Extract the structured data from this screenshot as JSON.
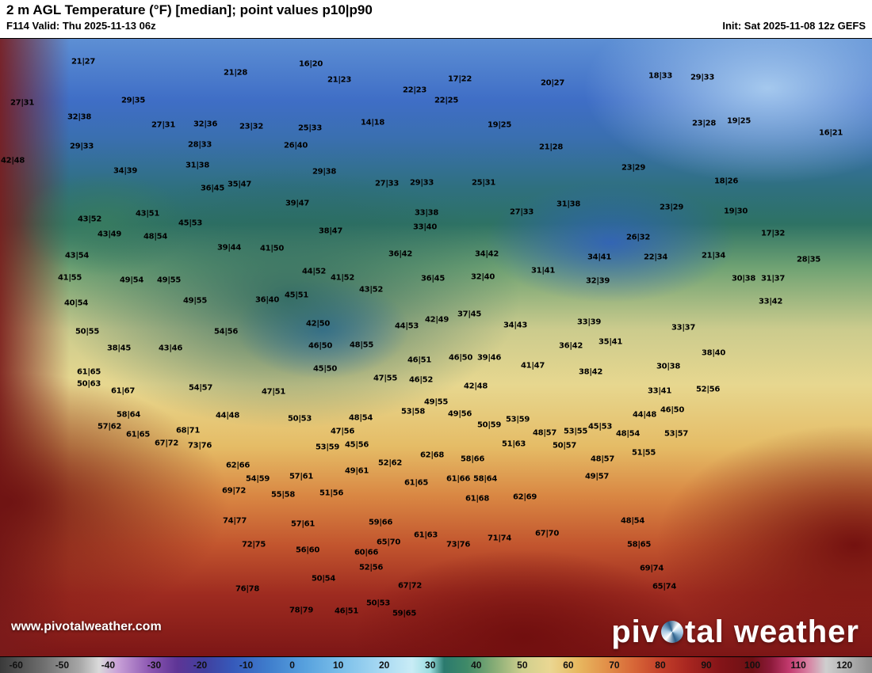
{
  "header": {
    "title": "2 m AGL Temperature (°F) [median]; point values p10|p90",
    "valid": "F114 Valid: Thu 2025-11-13 06z",
    "init": "Init: Sat 2025-11-08 12z GEFS"
  },
  "watermark": {
    "site": "www.pivotalweather.com",
    "brand_left": "piv",
    "brand_right": "tal weather"
  },
  "colorbar": {
    "domain": [
      -63.5,
      126
    ],
    "ticks": [
      -60,
      -50,
      -40,
      -30,
      -20,
      -10,
      0,
      10,
      20,
      30,
      40,
      50,
      60,
      70,
      80,
      90,
      100,
      110,
      120
    ],
    "stops": [
      [
        -63.5,
        "#3a3a3a"
      ],
      [
        -54,
        "#6f6f6f"
      ],
      [
        -46,
        "#a9a9a9"
      ],
      [
        -42,
        "#dadada"
      ],
      [
        -38,
        "#c9a2d8"
      ],
      [
        -31,
        "#8d58b2"
      ],
      [
        -25,
        "#5e3596"
      ],
      [
        -19,
        "#41409f"
      ],
      [
        -13,
        "#3659ba"
      ],
      [
        -5,
        "#3f7ecd"
      ],
      [
        3,
        "#58a2de"
      ],
      [
        11,
        "#7cc0ea"
      ],
      [
        19,
        "#a6d8f2"
      ],
      [
        26,
        "#c9ecf6"
      ],
      [
        30,
        "#9adee0"
      ],
      [
        33,
        "#2b7a6e"
      ],
      [
        38,
        "#3f8a68"
      ],
      [
        44,
        "#87ad76"
      ],
      [
        50,
        "#cfcf8e"
      ],
      [
        56,
        "#ead792"
      ],
      [
        62,
        "#e8b960"
      ],
      [
        68,
        "#e2924a"
      ],
      [
        74,
        "#d86838"
      ],
      [
        80,
        "#c4402a"
      ],
      [
        86,
        "#a82620"
      ],
      [
        93,
        "#841418"
      ],
      [
        100,
        "#6d1014"
      ],
      [
        104,
        "#8c1a3a"
      ],
      [
        108,
        "#c23a6e"
      ],
      [
        112,
        "#d87ea0"
      ],
      [
        116,
        "#cfcfcf"
      ],
      [
        126,
        "#8f8f8f"
      ]
    ]
  },
  "map": {
    "points": [
      [
        105,
        78,
        "21|27"
      ],
      [
        392,
        81,
        "16|20"
      ],
      [
        297,
        92,
        "21|28"
      ],
      [
        833,
        96,
        "18|33"
      ],
      [
        886,
        98,
        "29|33"
      ],
      [
        428,
        101,
        "21|23"
      ],
      [
        580,
        100,
        "17|22"
      ],
      [
        697,
        105,
        "20|27"
      ],
      [
        523,
        114,
        "22|23"
      ],
      [
        563,
        127,
        "22|25"
      ],
      [
        168,
        127,
        "29|35"
      ],
      [
        28,
        130,
        "27|31"
      ],
      [
        100,
        148,
        "32|38"
      ],
      [
        932,
        153,
        "19|25"
      ],
      [
        470,
        155,
        "14|18"
      ],
      [
        206,
        158,
        "27|31"
      ],
      [
        259,
        157,
        "32|36"
      ],
      [
        888,
        156,
        "23|28"
      ],
      [
        317,
        160,
        "23|32"
      ],
      [
        391,
        162,
        "25|33"
      ],
      [
        630,
        158,
        "19|25"
      ],
      [
        1048,
        168,
        "16|21"
      ],
      [
        103,
        185,
        "29|33"
      ],
      [
        252,
        183,
        "28|33"
      ],
      [
        373,
        184,
        "26|40"
      ],
      [
        695,
        186,
        "21|28"
      ],
      [
        16,
        203,
        "42|48"
      ],
      [
        249,
        209,
        "31|38"
      ],
      [
        799,
        212,
        "23|29"
      ],
      [
        158,
        216,
        "34|39"
      ],
      [
        409,
        217,
        "29|38"
      ],
      [
        916,
        229,
        "18|26"
      ],
      [
        302,
        233,
        "35|47"
      ],
      [
        488,
        232,
        "27|33"
      ],
      [
        532,
        231,
        "29|33"
      ],
      [
        610,
        231,
        "25|31"
      ],
      [
        268,
        238,
        "36|45"
      ],
      [
        375,
        257,
        "39|47"
      ],
      [
        717,
        258,
        "31|38"
      ],
      [
        847,
        262,
        "23|29"
      ],
      [
        928,
        267,
        "19|30"
      ],
      [
        658,
        268,
        "27|33"
      ],
      [
        538,
        269,
        "33|38"
      ],
      [
        186,
        270,
        "43|51"
      ],
      [
        113,
        277,
        "43|52"
      ],
      [
        240,
        282,
        "45|53"
      ],
      [
        536,
        287,
        "33|40"
      ],
      [
        138,
        296,
        "43|49"
      ],
      [
        196,
        299,
        "48|54"
      ],
      [
        805,
        300,
        "26|32"
      ],
      [
        975,
        295,
        "17|32"
      ],
      [
        289,
        313,
        "39|44"
      ],
      [
        343,
        314,
        "41|50"
      ],
      [
        417,
        292,
        "38|47"
      ],
      [
        97,
        323,
        "43|54"
      ],
      [
        505,
        321,
        "36|42"
      ],
      [
        614,
        321,
        "34|42"
      ],
      [
        827,
        325,
        "22|34"
      ],
      [
        900,
        323,
        "21|34"
      ],
      [
        1020,
        328,
        "28|35"
      ],
      [
        756,
        325,
        "34|41"
      ],
      [
        685,
        342,
        "31|41"
      ],
      [
        396,
        343,
        "44|52"
      ],
      [
        88,
        351,
        "41|55"
      ],
      [
        166,
        354,
        "49|54"
      ],
      [
        213,
        354,
        "49|55"
      ],
      [
        432,
        351,
        "41|52"
      ],
      [
        546,
        352,
        "36|45"
      ],
      [
        609,
        350,
        "32|40"
      ],
      [
        754,
        355,
        "32|39"
      ],
      [
        938,
        352,
        "30|38"
      ],
      [
        975,
        352,
        "31|37"
      ],
      [
        468,
        366,
        "43|52"
      ],
      [
        374,
        373,
        "45|51"
      ],
      [
        337,
        379,
        "36|40"
      ],
      [
        246,
        380,
        "49|55"
      ],
      [
        972,
        381,
        "33|42"
      ],
      [
        96,
        383,
        "40|54"
      ],
      [
        592,
        397,
        "37|45"
      ],
      [
        401,
        409,
        "42|50"
      ],
      [
        743,
        407,
        "33|39"
      ],
      [
        650,
        411,
        "34|43"
      ],
      [
        862,
        414,
        "33|37"
      ],
      [
        110,
        419,
        "50|55"
      ],
      [
        285,
        419,
        "54|56"
      ],
      [
        513,
        412,
        "44|53"
      ],
      [
        551,
        404,
        "42|49"
      ],
      [
        770,
        432,
        "35|41"
      ],
      [
        720,
        437,
        "36|42"
      ],
      [
        404,
        437,
        "46|50"
      ],
      [
        456,
        436,
        "48|55"
      ],
      [
        150,
        440,
        "38|45"
      ],
      [
        215,
        440,
        "43|46"
      ],
      [
        900,
        446,
        "38|40"
      ],
      [
        617,
        452,
        "39|46"
      ],
      [
        581,
        452,
        "46|50"
      ],
      [
        529,
        455,
        "46|51"
      ],
      [
        672,
        462,
        "41|47"
      ],
      [
        843,
        463,
        "30|38"
      ],
      [
        410,
        466,
        "45|50"
      ],
      [
        112,
        470,
        "61|65"
      ],
      [
        745,
        470,
        "38|42"
      ],
      [
        486,
        478,
        "47|55"
      ],
      [
        531,
        480,
        "46|52"
      ],
      [
        112,
        485,
        "50|63"
      ],
      [
        600,
        488,
        "42|48"
      ],
      [
        253,
        490,
        "54|57"
      ],
      [
        893,
        492,
        "52|56"
      ],
      [
        832,
        494,
        "33|41"
      ],
      [
        155,
        494,
        "61|67"
      ],
      [
        345,
        495,
        "47|51"
      ],
      [
        550,
        508,
        "49|55"
      ],
      [
        521,
        520,
        "53|58"
      ],
      [
        580,
        523,
        "49|56"
      ],
      [
        848,
        518,
        "46|50"
      ],
      [
        813,
        524,
        "44|48"
      ],
      [
        287,
        525,
        "44|48"
      ],
      [
        455,
        528,
        "48|54"
      ],
      [
        378,
        529,
        "50|53"
      ],
      [
        653,
        530,
        "53|59"
      ],
      [
        617,
        537,
        "50|59"
      ],
      [
        757,
        539,
        "45|53"
      ],
      [
        138,
        539,
        "57|62"
      ],
      [
        237,
        544,
        "68|71"
      ],
      [
        432,
        545,
        "47|56"
      ],
      [
        726,
        545,
        "53|55"
      ],
      [
        687,
        547,
        "48|57"
      ],
      [
        792,
        548,
        "48|54"
      ],
      [
        853,
        548,
        "53|57"
      ],
      [
        174,
        549,
        "61|65"
      ],
      [
        162,
        524,
        "58|64"
      ],
      [
        210,
        560,
        "67|72"
      ],
      [
        252,
        563,
        "73|76"
      ],
      [
        413,
        565,
        "53|59"
      ],
      [
        450,
        562,
        "45|56"
      ],
      [
        712,
        563,
        "50|57"
      ],
      [
        648,
        561,
        "51|63"
      ],
      [
        812,
        572,
        "51|55"
      ],
      [
        545,
        575,
        "62|68"
      ],
      [
        596,
        580,
        "58|66"
      ],
      [
        760,
        580,
        "48|57"
      ],
      [
        492,
        585,
        "52|62"
      ],
      [
        300,
        588,
        "62|66"
      ],
      [
        450,
        595,
        "49|61"
      ],
      [
        380,
        602,
        "57|61"
      ],
      [
        753,
        602,
        "49|57"
      ],
      [
        325,
        605,
        "54|59"
      ],
      [
        578,
        605,
        "61|66"
      ],
      [
        612,
        605,
        "58|64"
      ],
      [
        525,
        610,
        "61|65"
      ],
      [
        295,
        620,
        "69|72"
      ],
      [
        418,
        623,
        "51|56"
      ],
      [
        357,
        625,
        "55|58"
      ],
      [
        602,
        630,
        "61|68"
      ],
      [
        662,
        628,
        "62|69"
      ],
      [
        296,
        658,
        "74|77"
      ],
      [
        798,
        658,
        "48|54"
      ],
      [
        382,
        662,
        "57|61"
      ],
      [
        480,
        660,
        "59|66"
      ],
      [
        537,
        676,
        "61|63"
      ],
      [
        630,
        680,
        "71|74"
      ],
      [
        690,
        674,
        "67|70"
      ],
      [
        320,
        688,
        "72|75"
      ],
      [
        490,
        685,
        "65|70"
      ],
      [
        578,
        688,
        "73|76"
      ],
      [
        806,
        688,
        "58|65"
      ],
      [
        388,
        695,
        "56|60"
      ],
      [
        462,
        698,
        "60|66"
      ],
      [
        468,
        717,
        "52|56"
      ],
      [
        822,
        718,
        "69|74"
      ],
      [
        408,
        731,
        "50|54"
      ],
      [
        312,
        744,
        "76|78"
      ],
      [
        517,
        740,
        "67|72"
      ],
      [
        838,
        741,
        "65|74"
      ],
      [
        437,
        772,
        "46|51"
      ],
      [
        477,
        762,
        "50|53"
      ],
      [
        510,
        775,
        "59|65"
      ],
      [
        380,
        771,
        "78|79"
      ]
    ]
  }
}
